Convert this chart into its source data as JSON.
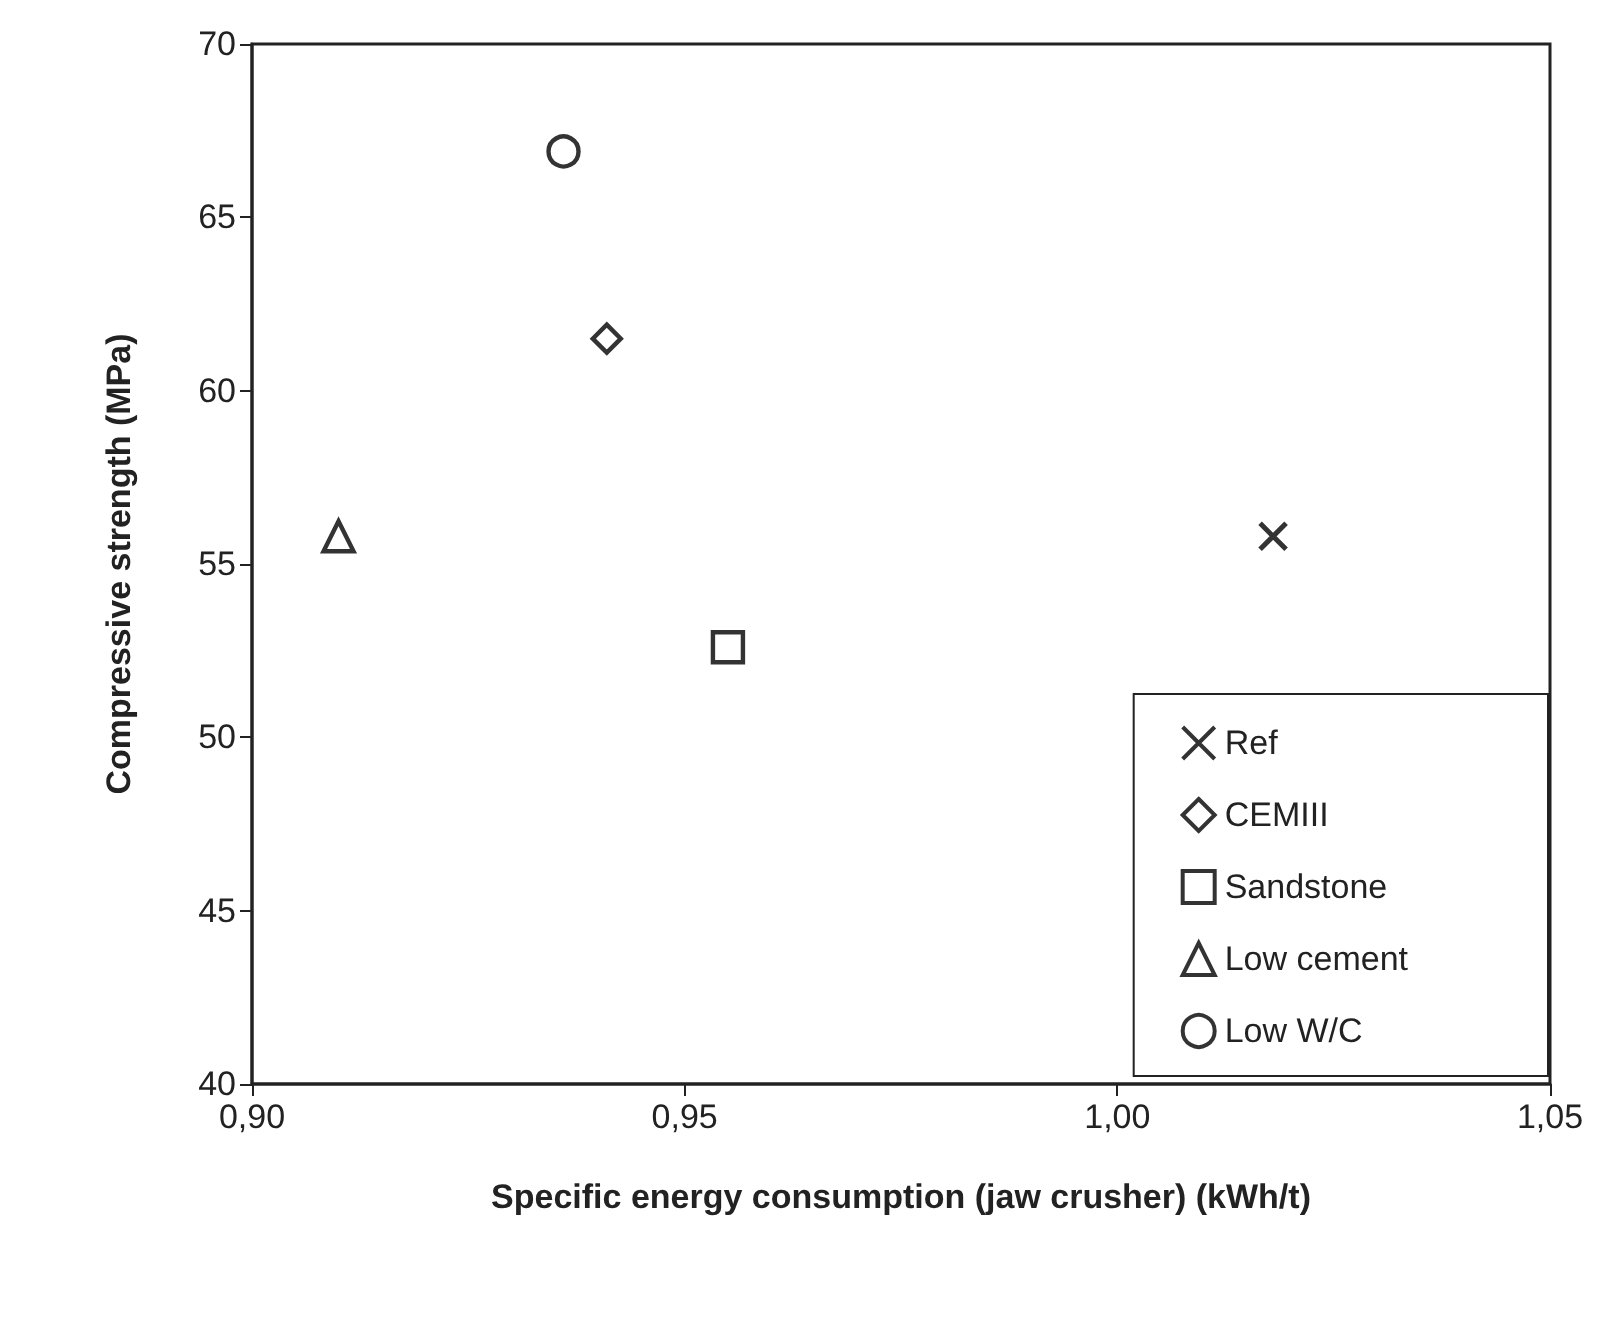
{
  "chart_data": {
    "type": "scatter",
    "xlabel": "Specific energy consumption (jaw crusher) (kWh/t)",
    "ylabel": "Compressive strength (MPa)",
    "xlim": [
      0.9,
      1.05
    ],
    "xticks": [
      {
        "value": 0.9,
        "label": "0,90"
      },
      {
        "value": 0.95,
        "label": "0,95"
      },
      {
        "value": 1.0,
        "label": "1,00"
      },
      {
        "value": 1.05,
        "label": "1,05"
      }
    ],
    "ylim": [
      40,
      70
    ],
    "yticks": [
      40,
      45,
      50,
      55,
      60,
      65,
      70
    ],
    "grid": false,
    "legend": "bottom right",
    "series": [
      {
        "name": "Ref",
        "color": "#000000",
        "marker": "cross",
        "x": [
          1.018
        ],
        "values": [
          55.8
        ]
      },
      {
        "name": "CEMIII",
        "color": "#000000",
        "marker": "diamond",
        "x": [
          0.941
        ],
        "values": [
          61.5
        ]
      },
      {
        "name": "Sandstone",
        "color": "#000000",
        "marker": "square",
        "x": [
          0.955
        ],
        "values": [
          52.6
        ]
      },
      {
        "name": "Low cement",
        "color": "#000000",
        "marker": "triangle",
        "x": [
          0.91
        ],
        "values": [
          55.8
        ]
      },
      {
        "name": "Low W/C",
        "color": "#000000",
        "marker": "circle",
        "x": [
          0.936
        ],
        "values": [
          66.9
        ]
      }
    ]
  }
}
